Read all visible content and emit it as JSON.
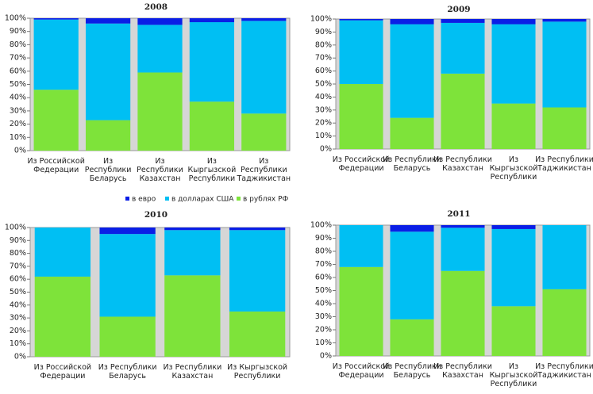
{
  "chart_data": [
    {
      "type": "bar",
      "stacked": true,
      "title": "2008",
      "legend": "bottom",
      "categories": [
        "Из Российской\nФедерации",
        "Из\nРеспублики\nБеларусь",
        "Из\nРеспублики\nКазахстан",
        "Из\nКыргызской\nРеспублики",
        "Из\nРеспублики\nТаджикистан"
      ],
      "series": [
        {
          "name": "в евро",
          "color": "#0a1ee6",
          "values": [
            1,
            4,
            5,
            3,
            2
          ]
        },
        {
          "name": "в долларах США",
          "color": "#00bff3",
          "values": [
            53,
            73,
            36,
            60,
            70
          ]
        },
        {
          "name": "в рублях РФ",
          "color": "#7ee33a",
          "values": [
            46,
            23,
            59,
            37,
            28
          ]
        }
      ],
      "ylim": [
        0,
        100
      ],
      "yticks": [
        {
          "value": 0,
          "label": "0%"
        },
        {
          "value": 10,
          "label": "10%"
        },
        {
          "value": 20,
          "label": "20%"
        },
        {
          "value": 30,
          "label": "30%"
        },
        {
          "value": 40,
          "label": "40%"
        },
        {
          "value": 50,
          "label": "50%"
        },
        {
          "value": 60,
          "label": "60%"
        },
        {
          "value": 70,
          "label": "70%"
        },
        {
          "value": 80,
          "label": "80%"
        },
        {
          "value": 90,
          "label": "90%"
        },
        {
          "value": 100,
          "label": "100%"
        }
      ]
    },
    {
      "type": "bar",
      "stacked": true,
      "title": "2009",
      "categories": [
        "Из Российской\nФедерации",
        "Из Республики\nБеларусь",
        "Из Республики\nКазахстан",
        "Из\nКыргызской\nРеспублики",
        "Из Республики\nТаджикистан"
      ],
      "series": [
        {
          "name": "в евро",
          "color": "#0a1ee6",
          "values": [
            1,
            4,
            3,
            4,
            2
          ]
        },
        {
          "name": "в долларах США",
          "color": "#00bff3",
          "values": [
            49,
            72,
            39,
            61,
            66
          ]
        },
        {
          "name": "в рублях РФ",
          "color": "#7ee33a",
          "values": [
            50,
            24,
            58,
            35,
            32
          ]
        }
      ],
      "ylim": [
        0,
        100
      ],
      "yticks": [
        {
          "value": 0,
          "label": "0%"
        },
        {
          "value": 10,
          "label": "10%"
        },
        {
          "value": 20,
          "label": "20%"
        },
        {
          "value": 30,
          "label": "30%"
        },
        {
          "value": 40,
          "label": "40%"
        },
        {
          "value": 50,
          "label": "50%"
        },
        {
          "value": 60,
          "label": "60%"
        },
        {
          "value": 70,
          "label": "70%"
        },
        {
          "value": 80,
          "label": "80%"
        },
        {
          "value": 90,
          "label": "90%"
        },
        {
          "value": 100,
          "label": "100%"
        }
      ]
    },
    {
      "type": "bar",
      "stacked": true,
      "title": "2010",
      "categories": [
        "Из Российской\nФедерации",
        "Из Республики\nБеларусь",
        "Из Республики\nКазахстан",
        "Из Кыргызской\nРеспублики"
      ],
      "series": [
        {
          "name": "в евро",
          "color": "#0a1ee6",
          "values": [
            0,
            5,
            2,
            2
          ]
        },
        {
          "name": "в долларах США",
          "color": "#00bff3",
          "values": [
            38,
            64,
            35,
            63
          ]
        },
        {
          "name": "в рублях РФ",
          "color": "#7ee33a",
          "values": [
            62,
            31,
            63,
            35
          ]
        }
      ],
      "ylim": [
        0,
        100
      ],
      "yticks": [
        {
          "value": 0,
          "label": "0%"
        },
        {
          "value": 10,
          "label": "10%"
        },
        {
          "value": 20,
          "label": "20%"
        },
        {
          "value": 30,
          "label": "30%"
        },
        {
          "value": 40,
          "label": "40%"
        },
        {
          "value": 50,
          "label": "50%"
        },
        {
          "value": 60,
          "label": "60%"
        },
        {
          "value": 70,
          "label": "70%"
        },
        {
          "value": 80,
          "label": "80%"
        },
        {
          "value": 90,
          "label": "90%"
        },
        {
          "value": 100,
          "label": "100%"
        }
      ]
    },
    {
      "type": "bar",
      "stacked": true,
      "title": "2011",
      "categories": [
        "Из Российской\nФедерации",
        "Из Республики\nБеларусь",
        "Из Республики\nКазахстан",
        "Из\nКыргызской\nРеспублики",
        "Из Республики\nТаджикистан"
      ],
      "series": [
        {
          "name": "в евро",
          "color": "#0a1ee6",
          "values": [
            0,
            5,
            2,
            3,
            0
          ]
        },
        {
          "name": "в долларах США",
          "color": "#00bff3",
          "values": [
            32,
            67,
            33,
            59,
            49
          ]
        },
        {
          "name": "в рублях РФ",
          "color": "#7ee33a",
          "values": [
            68,
            28,
            65,
            38,
            51
          ]
        }
      ],
      "ylim": [
        0,
        100
      ],
      "yticks": [
        {
          "value": 0,
          "label": "0%"
        },
        {
          "value": 10,
          "label": "10%"
        },
        {
          "value": 20,
          "label": "20%"
        },
        {
          "value": 30,
          "label": "30%"
        },
        {
          "value": 40,
          "label": "40%"
        },
        {
          "value": 50,
          "label": "50%"
        },
        {
          "value": 60,
          "label": "60%"
        },
        {
          "value": 70,
          "label": "70%"
        },
        {
          "value": 80,
          "label": "80%"
        },
        {
          "value": 90,
          "label": "90%"
        },
        {
          "value": 100,
          "label": "100%"
        }
      ]
    }
  ]
}
